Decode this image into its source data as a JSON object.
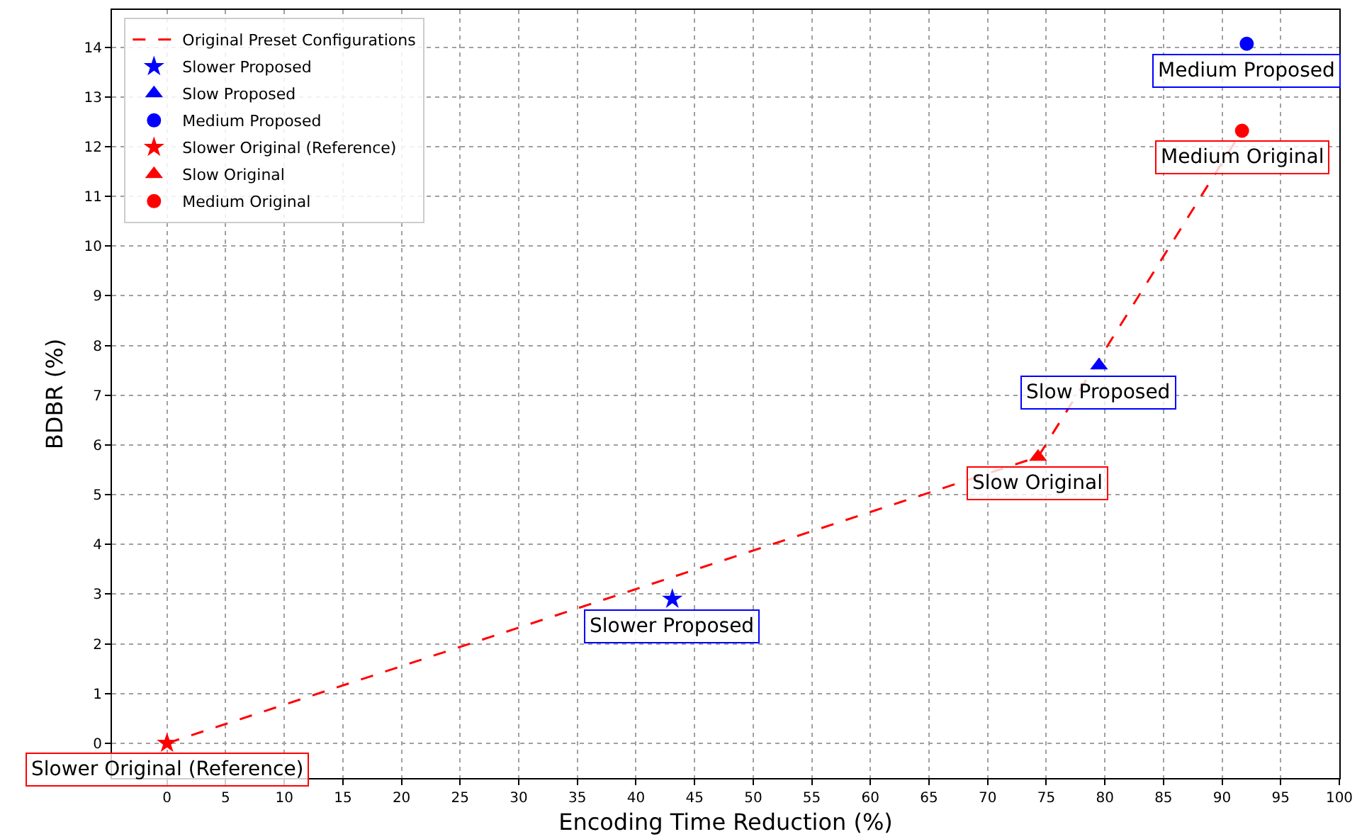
{
  "chart_data": {
    "type": "scatter",
    "xlabel": "Encoding Time Reduction (%)",
    "ylabel": "BDBR (%)",
    "xlim": [
      -4.7,
      100
    ],
    "ylim": [
      -0.7,
      14.75
    ],
    "xticks": [
      0,
      5,
      10,
      15,
      20,
      25,
      30,
      35,
      40,
      45,
      50,
      55,
      60,
      65,
      70,
      75,
      80,
      85,
      90,
      95,
      100
    ],
    "yticks": [
      0,
      1,
      2,
      3,
      4,
      5,
      6,
      7,
      8,
      9,
      10,
      11,
      12,
      13,
      14
    ],
    "grid": true,
    "legend": "top left",
    "series": [
      {
        "name": "Original Preset Configurations",
        "type": "line",
        "color": "#ff0000",
        "marker": "none",
        "line_style": "dashed",
        "x": [
          0,
          74.3,
          91.7
        ],
        "values": [
          0,
          5.76,
          12.32
        ]
      },
      {
        "name": "Slower Proposed",
        "color": "#0000ff",
        "marker": "star",
        "x": [
          43.1
        ],
        "values": [
          2.9
        ]
      },
      {
        "name": "Slow Proposed",
        "color": "#0000ff",
        "marker": "triangle",
        "x": [
          79.5
        ],
        "values": [
          7.6
        ]
      },
      {
        "name": "Medium Proposed",
        "color": "#0000ff",
        "marker": "circle",
        "x": [
          92.1
        ],
        "values": [
          14.07
        ]
      },
      {
        "name": "Slower Original (Reference)",
        "color": "#ff0000",
        "marker": "star",
        "x": [
          0
        ],
        "values": [
          0
        ]
      },
      {
        "name": "Slow Original",
        "color": "#ff0000",
        "marker": "triangle",
        "x": [
          74.3
        ],
        "values": [
          5.76
        ]
      },
      {
        "name": "Medium Original",
        "color": "#ff0000",
        "marker": "circle",
        "x": [
          91.7
        ],
        "values": [
          12.32
        ]
      }
    ],
    "annotations": [
      {
        "text": "Slower Proposed",
        "x": 43.1,
        "y": 2.9
      },
      {
        "text": "Slow Proposed",
        "x": 79.5,
        "y": 7.6
      },
      {
        "text": "Medium Proposed",
        "x": 92.1,
        "y": 14.07
      },
      {
        "text": "Slower Original (Reference)",
        "x": 0,
        "y": 0
      },
      {
        "text": "Slow Original",
        "x": 74.3,
        "y": 5.76
      },
      {
        "text": "Medium Original",
        "x": 91.7,
        "y": 12.32
      }
    ]
  }
}
